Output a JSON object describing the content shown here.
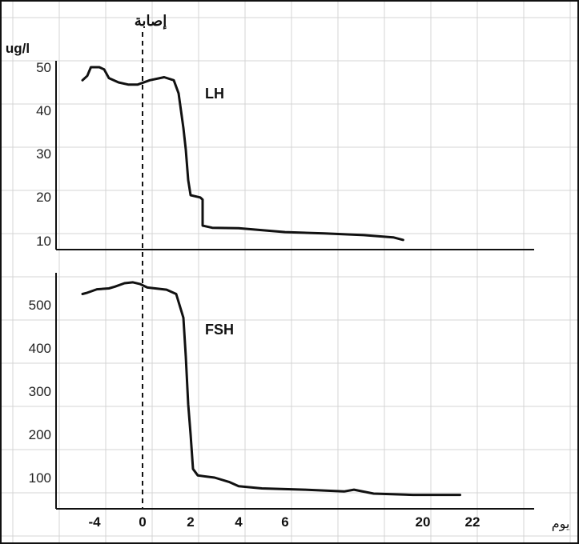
{
  "top_label": "إصابة",
  "unit_label": "ug/l",
  "x_axis_label": "يوم",
  "x_tick_labels": [
    "-4",
    "0",
    "2",
    "4",
    "6",
    "20",
    "22"
  ],
  "line_color": "#111111",
  "grid_color": "#d4d4d4",
  "chart_data": [
    {
      "type": "line",
      "series": [
        {
          "name": "LH",
          "points": [
            [
              -5.0,
              47
            ],
            [
              -4.6,
              48
            ],
            [
              -4.3,
              50
            ],
            [
              -3.6,
              50
            ],
            [
              -3.2,
              49.5
            ],
            [
              -2.8,
              47.5
            ],
            [
              -2.0,
              46.5
            ],
            [
              -1.2,
              46
            ],
            [
              -0.4,
              46
            ],
            [
              0.3,
              47
            ],
            [
              0.9,
              47.7
            ],
            [
              1.3,
              47
            ],
            [
              1.5,
              44
            ],
            [
              1.7,
              36
            ],
            [
              1.8,
              31
            ],
            [
              1.9,
              24
            ],
            [
              2.0,
              20.5
            ],
            [
              2.4,
              20
            ],
            [
              2.5,
              19.5
            ],
            [
              2.5,
              13.5
            ],
            [
              2.9,
              13
            ],
            [
              4.0,
              12.9
            ],
            [
              6.0,
              12
            ],
            [
              10.0,
              11.7
            ],
            [
              14.0,
              11.3
            ],
            [
              17.0,
              10.8
            ],
            [
              18.0,
              10.2
            ]
          ]
        }
      ],
      "yticks": [
        10,
        20,
        30,
        40,
        50
      ],
      "ylim": [
        10,
        50
      ],
      "event_x": 0
    },
    {
      "type": "line",
      "series": [
        {
          "name": "FSH",
          "points": [
            [
              -5.0,
              525
            ],
            [
              -4.6,
              528
            ],
            [
              -3.8,
              536
            ],
            [
              -2.8,
              538
            ],
            [
              -2.3,
              542
            ],
            [
              -1.5,
              550
            ],
            [
              -0.8,
              552
            ],
            [
              -0.2,
              548
            ],
            [
              0.2,
              540
            ],
            [
              1.0,
              535
            ],
            [
              1.4,
              525
            ],
            [
              1.7,
              470
            ],
            [
              1.8,
              380
            ],
            [
              1.9,
              270
            ],
            [
              2.0,
              200
            ],
            [
              2.1,
              120
            ],
            [
              2.3,
              105
            ],
            [
              3.0,
              100
            ],
            [
              3.6,
              90
            ],
            [
              4.0,
              80
            ],
            [
              5.0,
              75
            ],
            [
              8.0,
              72
            ],
            [
              12.0,
              68
            ],
            [
              13.0,
              72
            ],
            [
              15.0,
              63
            ],
            [
              19.0,
              60
            ],
            [
              21.5,
              60
            ]
          ]
        }
      ],
      "yticks": [
        100,
        200,
        300,
        400,
        500
      ],
      "ylim": [
        100,
        500
      ],
      "event_x": 0
    }
  ]
}
